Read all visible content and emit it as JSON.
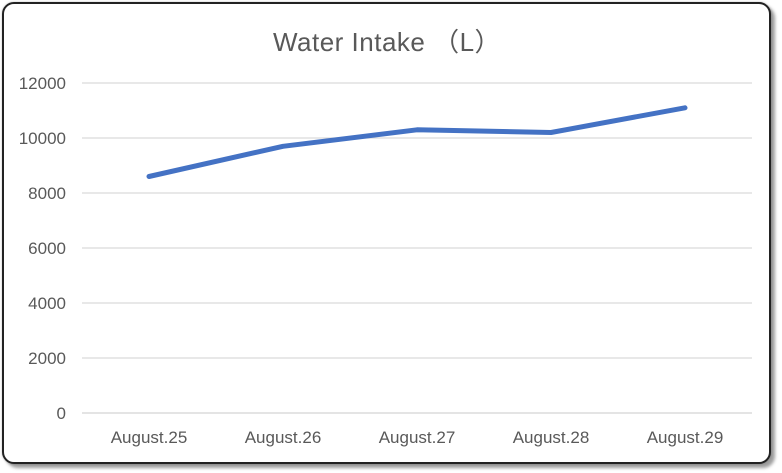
{
  "chart_data": {
    "type": "line",
    "title": "Water Intake （L）",
    "categories": [
      "August.25",
      "August.26",
      "August.27",
      "August.28",
      "August.29"
    ],
    "series": [
      {
        "name": "Water Intake",
        "values": [
          8600,
          9700,
          10300,
          10200,
          11100
        ]
      }
    ],
    "xlabel": "",
    "ylabel": "",
    "ylim": [
      0,
      12000
    ],
    "yticks": [
      0,
      2000,
      4000,
      6000,
      8000,
      10000,
      12000
    ],
    "grid": "horizontal-only",
    "legend_position": "none",
    "colors": {
      "line": "#4472C4",
      "gridline": "#D9D9D9",
      "axis_line": "#D3D3D3",
      "tick_text": "#595959",
      "title_text": "#595959",
      "frame_border": "#222222"
    }
  }
}
